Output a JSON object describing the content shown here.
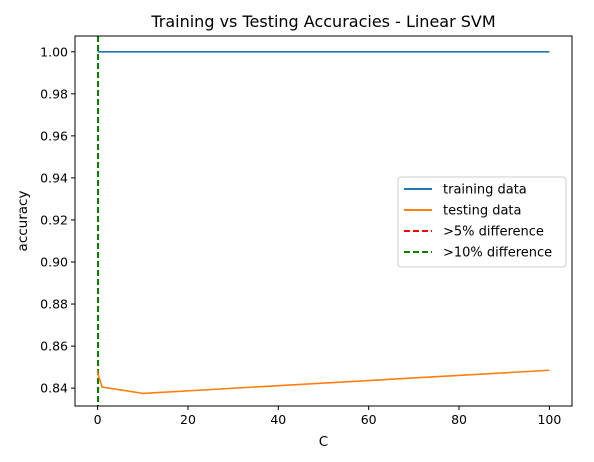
{
  "chart_data": {
    "type": "line",
    "title": "Training vs Testing Accuracies - Linear SVM",
    "xlabel": "C",
    "ylabel": "accuracy",
    "xlim": [
      -5,
      105
    ],
    "ylim": [
      0.8315,
      1.0075
    ],
    "xticks": [
      0,
      20,
      40,
      60,
      80,
      100
    ],
    "xtick_labels": [
      "0",
      "20",
      "40",
      "60",
      "80",
      "100"
    ],
    "yticks": [
      0.84,
      0.86,
      0.88,
      0.9,
      0.92,
      0.94,
      0.96,
      0.98,
      1.0
    ],
    "ytick_labels": [
      "0.84",
      "0.86",
      "0.88",
      "0.90",
      "0.92",
      "0.94",
      "0.96",
      "0.98",
      "1.00"
    ],
    "grid": false,
    "legend_position": "center-right",
    "series": [
      {
        "name": "training data",
        "color": "#1f77b4",
        "style": "solid",
        "x": [
          0.001,
          0.01,
          0.1,
          1,
          10,
          100
        ],
        "y": [
          1.0,
          1.0,
          1.0,
          1.0,
          1.0,
          1.0
        ]
      },
      {
        "name": "testing data",
        "color": "#ff7f0e",
        "style": "solid",
        "x": [
          0.001,
          0.01,
          0.1,
          1,
          10,
          100
        ],
        "y": [
          0.8485,
          0.8475,
          0.8465,
          0.8405,
          0.8375,
          0.8485
        ]
      }
    ],
    "vlines": [
      {
        "name": ">5% difference",
        "color": "#ff0000",
        "style": "dashed",
        "x": 0.1
      },
      {
        "name": ">10% difference",
        "color": "#008000",
        "style": "dashed",
        "x": 0.1
      }
    ]
  }
}
